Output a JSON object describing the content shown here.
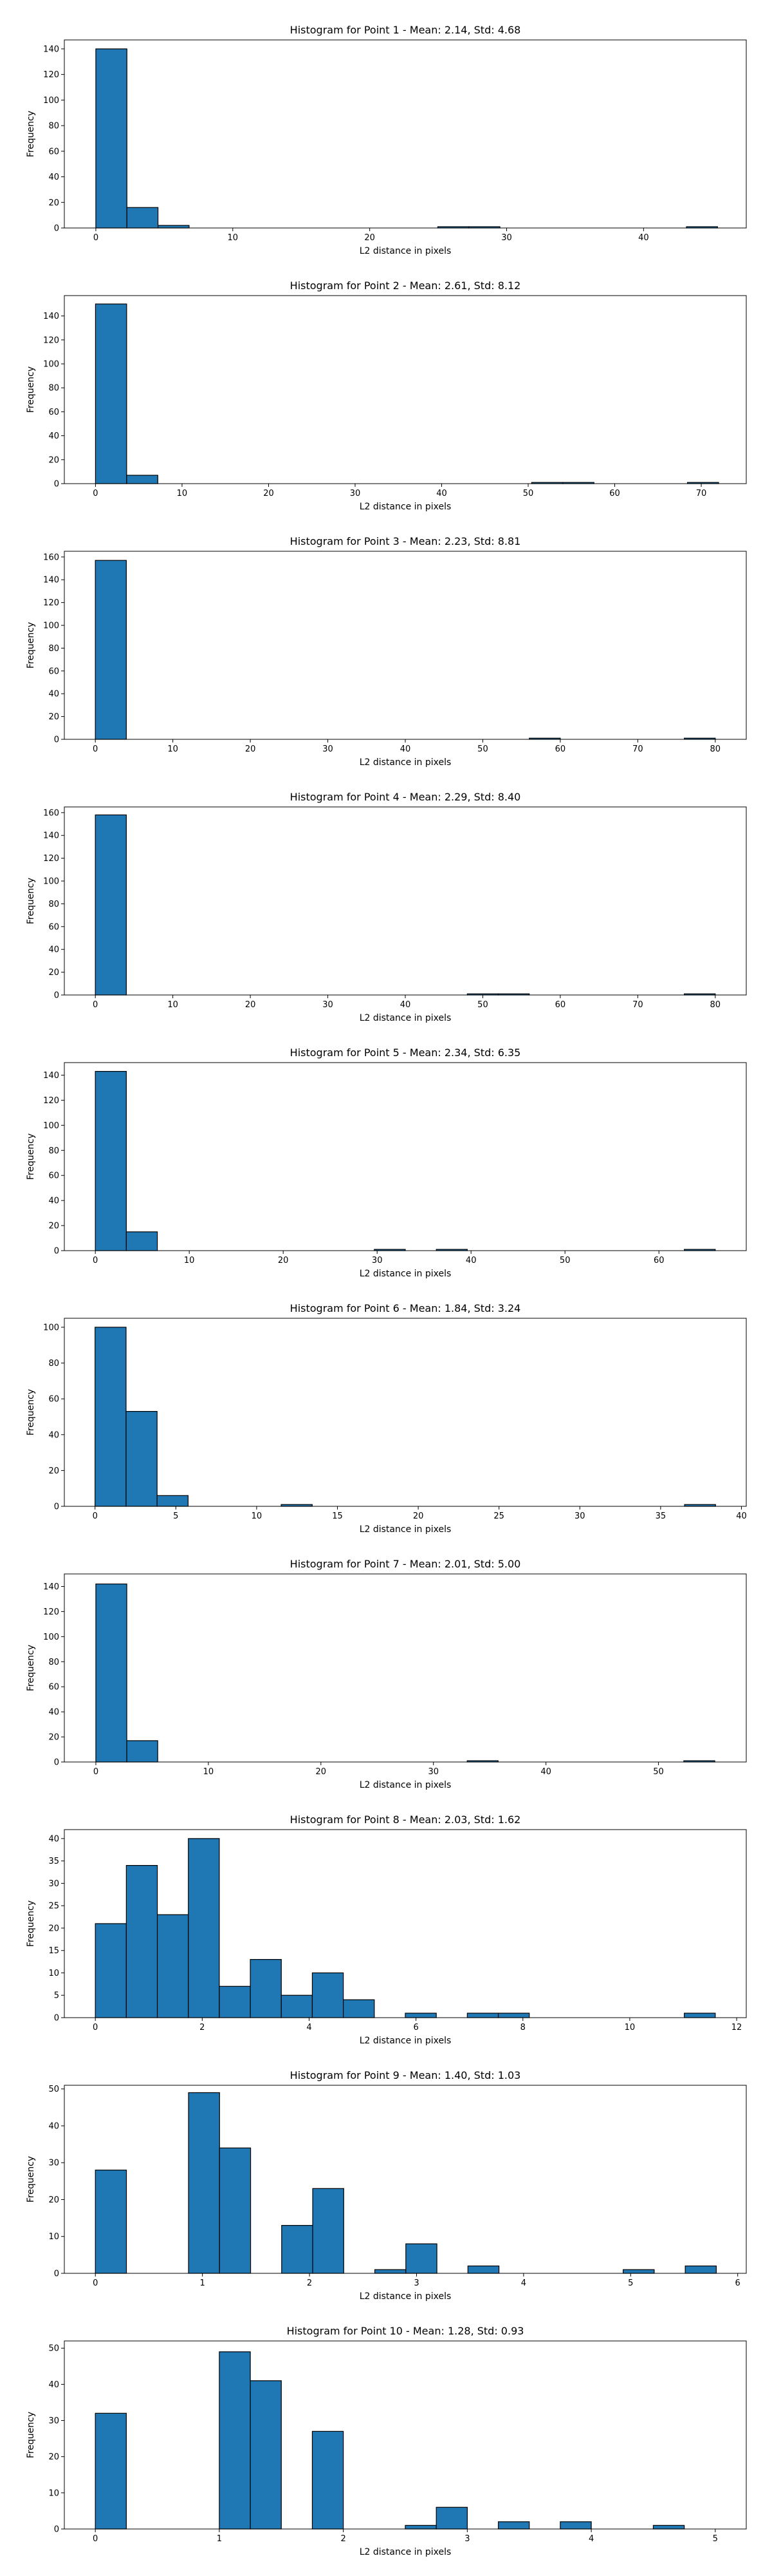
{
  "chart_data": [
    {
      "type": "bar",
      "title": "Histogram for Point 1 - Mean: 2.14, Std: 4.68",
      "xlabel": "L2 distance in pixels",
      "ylabel": "Frequency",
      "xlim": [
        -2.3,
        47.5
      ],
      "ylim": [
        0,
        147
      ],
      "xticks": [
        0,
        10,
        20,
        30,
        40
      ],
      "yticks": [
        0,
        20,
        40,
        60,
        80,
        100,
        120,
        140
      ],
      "bin_edges": [
        0.0,
        2.27,
        4.54,
        6.81,
        9.08,
        11.35,
        13.62,
        15.89,
        18.16,
        20.43,
        22.7,
        24.97,
        27.24,
        29.51,
        31.78,
        34.05,
        36.32,
        38.59,
        40.86,
        43.13,
        45.4
      ],
      "values": [
        140,
        16,
        2,
        0,
        0,
        0,
        0,
        0,
        0,
        0,
        0,
        1,
        1,
        0,
        0,
        0,
        0,
        0,
        0,
        1
      ]
    },
    {
      "type": "bar",
      "title": "Histogram for Point 2 - Mean: 2.61, Std: 8.12",
      "xlabel": "L2 distance in pixels",
      "ylabel": "Frequency",
      "xlim": [
        -3.6,
        75.2
      ],
      "ylim": [
        0,
        157
      ],
      "xticks": [
        0,
        10,
        20,
        30,
        40,
        50,
        60,
        70
      ],
      "yticks": [
        0,
        20,
        40,
        60,
        80,
        100,
        120,
        140
      ],
      "bin_edges": [
        0.0,
        3.6,
        7.2,
        10.8,
        14.4,
        18.0,
        21.6,
        25.2,
        28.8,
        32.4,
        36.0,
        39.6,
        43.2,
        46.8,
        50.4,
        54.0,
        57.6,
        61.2,
        64.8,
        68.4,
        72.0
      ],
      "values": [
        150,
        7,
        0,
        0,
        0,
        0,
        0,
        0,
        0,
        0,
        0,
        0,
        0,
        0,
        1,
        1,
        0,
        0,
        0,
        1
      ]
    },
    {
      "type": "bar",
      "title": "Histogram for Point 3 - Mean: 2.23, Std: 8.81",
      "xlabel": "L2 distance in pixels",
      "ylabel": "Frequency",
      "xlim": [
        -4.0,
        84.0
      ],
      "ylim": [
        0,
        165
      ],
      "xticks": [
        0,
        10,
        20,
        30,
        40,
        50,
        60,
        70,
        80
      ],
      "yticks": [
        0,
        20,
        40,
        60,
        80,
        100,
        120,
        140,
        160
      ],
      "bin_edges": [
        0.0,
        4.0,
        8.0,
        12.0,
        16.0,
        20.0,
        24.0,
        28.0,
        32.0,
        36.0,
        40.0,
        44.0,
        48.0,
        52.0,
        56.0,
        60.0,
        64.0,
        68.0,
        72.0,
        76.0,
        80.0
      ],
      "values": [
        157,
        0,
        0,
        0,
        0,
        0,
        0,
        0,
        0,
        0,
        0,
        0,
        0,
        0,
        1,
        0,
        0,
        0,
        0,
        1
      ]
    },
    {
      "type": "bar",
      "title": "Histogram for Point 4 - Mean: 2.29, Std: 8.40",
      "xlabel": "L2 distance in pixels",
      "ylabel": "Frequency",
      "xlim": [
        -4.0,
        84.0
      ],
      "ylim": [
        0,
        165
      ],
      "xticks": [
        0,
        10,
        20,
        30,
        40,
        50,
        60,
        70,
        80
      ],
      "yticks": [
        0,
        20,
        40,
        60,
        80,
        100,
        120,
        140,
        160
      ],
      "bin_edges": [
        0.0,
        4.0,
        8.0,
        12.0,
        16.0,
        20.0,
        24.0,
        28.0,
        32.0,
        36.0,
        40.0,
        44.0,
        48.0,
        52.0,
        56.0,
        60.0,
        64.0,
        68.0,
        72.0,
        76.0,
        80.0
      ],
      "values": [
        158,
        0,
        0,
        0,
        0,
        0,
        0,
        0,
        0,
        0,
        0,
        0,
        1,
        1,
        0,
        0,
        0,
        0,
        0,
        1
      ]
    },
    {
      "type": "bar",
      "title": "Histogram for Point 5 - Mean: 2.34, Std: 6.35",
      "xlabel": "L2 distance in pixels",
      "ylabel": "Frequency",
      "xlim": [
        -3.3,
        69.3
      ],
      "ylim": [
        0,
        150
      ],
      "xticks": [
        0,
        10,
        20,
        30,
        40,
        50,
        60
      ],
      "yticks": [
        0,
        20,
        40,
        60,
        80,
        100,
        120,
        140
      ],
      "bin_edges": [
        0.0,
        3.3,
        6.6,
        9.9,
        13.2,
        16.5,
        19.8,
        23.1,
        26.4,
        29.7,
        33.0,
        36.3,
        39.6,
        42.9,
        46.2,
        49.5,
        52.8,
        56.1,
        59.4,
        62.7,
        66.0
      ],
      "values": [
        143,
        15,
        0,
        0,
        0,
        0,
        0,
        0,
        0,
        1,
        0,
        1,
        0,
        0,
        0,
        0,
        0,
        0,
        0,
        1
      ]
    },
    {
      "type": "bar",
      "title": "Histogram for Point 6 - Mean: 1.84, Std: 3.24",
      "xlabel": "L2 distance in pixels",
      "ylabel": "Frequency",
      "xlim": [
        -1.9,
        40.3
      ],
      "ylim": [
        0,
        105
      ],
      "xticks": [
        0,
        5,
        10,
        15,
        20,
        25,
        30,
        35,
        40
      ],
      "yticks": [
        0,
        20,
        40,
        60,
        80,
        100
      ],
      "bin_edges": [
        0.0,
        1.92,
        3.84,
        5.76,
        7.68,
        9.6,
        11.52,
        13.44,
        15.36,
        17.28,
        19.2,
        21.12,
        23.04,
        24.96,
        26.88,
        28.8,
        30.72,
        32.64,
        34.56,
        36.48,
        38.4
      ],
      "values": [
        100,
        53,
        6,
        0,
        0,
        0,
        1,
        0,
        0,
        0,
        0,
        0,
        0,
        0,
        0,
        0,
        0,
        0,
        0,
        1
      ]
    },
    {
      "type": "bar",
      "title": "Histogram for Point 7 - Mean: 2.01, Std: 5.00",
      "xlabel": "L2 distance in pixels",
      "ylabel": "Frequency",
      "xlim": [
        -2.8,
        57.8
      ],
      "ylim": [
        0,
        150
      ],
      "xticks": [
        0,
        10,
        20,
        30,
        40,
        50
      ],
      "yticks": [
        0,
        20,
        40,
        60,
        80,
        100,
        120,
        140
      ],
      "bin_edges": [
        0.0,
        2.75,
        5.5,
        8.25,
        11.0,
        13.75,
        16.5,
        19.25,
        22.0,
        24.75,
        27.5,
        30.25,
        33.0,
        35.75,
        38.5,
        41.25,
        44.0,
        46.75,
        49.5,
        52.25,
        55.0
      ],
      "values": [
        142,
        17,
        0,
        0,
        0,
        0,
        0,
        0,
        0,
        0,
        0,
        0,
        1,
        0,
        0,
        0,
        0,
        0,
        0,
        1
      ]
    },
    {
      "type": "bar",
      "title": "Histogram for Point 8 - Mean: 2.03, Std: 1.62",
      "xlabel": "L2 distance in pixels",
      "ylabel": "Frequency",
      "xlim": [
        -0.58,
        12.18
      ],
      "ylim": [
        0,
        42
      ],
      "xticks": [
        0,
        2,
        4,
        6,
        8,
        10,
        12
      ],
      "yticks": [
        0,
        5,
        10,
        15,
        20,
        25,
        30,
        35,
        40
      ],
      "bin_edges": [
        0.0,
        0.58,
        1.16,
        1.74,
        2.32,
        2.9,
        3.48,
        4.06,
        4.64,
        5.22,
        5.8,
        6.38,
        6.96,
        7.54,
        8.12,
        8.7,
        9.28,
        9.86,
        10.44,
        11.02,
        11.6
      ],
      "values": [
        21,
        34,
        23,
        40,
        7,
        13,
        5,
        10,
        4,
        0,
        1,
        0,
        1,
        1,
        0,
        0,
        0,
        0,
        0,
        1
      ]
    },
    {
      "type": "bar",
      "title": "Histogram for Point 9 - Mean: 1.40, Std: 1.03",
      "xlabel": "L2 distance in pixels",
      "ylabel": "Frequency",
      "xlim": [
        -0.29,
        6.08
      ],
      "ylim": [
        0,
        51
      ],
      "xticks": [
        0,
        1,
        2,
        3,
        4,
        5,
        6
      ],
      "yticks": [
        0,
        10,
        20,
        30,
        40,
        50
      ],
      "bin_edges": [
        0.0,
        0.29,
        0.58,
        0.87,
        1.16,
        1.45,
        1.74,
        2.03,
        2.32,
        2.61,
        2.9,
        3.19,
        3.48,
        3.77,
        4.06,
        4.35,
        4.64,
        4.93,
        5.22,
        5.51,
        5.8
      ],
      "values": [
        28,
        0,
        0,
        49,
        34,
        0,
        13,
        23,
        0,
        1,
        8,
        0,
        2,
        0,
        0,
        0,
        0,
        1,
        0,
        2
      ]
    },
    {
      "type": "bar",
      "title": "Histogram for Point 10 - Mean: 1.28, Std: 0.93",
      "xlabel": "L2 distance in pixels",
      "ylabel": "Frequency",
      "xlim": [
        -0.25,
        5.25
      ],
      "ylim": [
        0,
        52
      ],
      "xticks": [
        0,
        1,
        2,
        3,
        4,
        5
      ],
      "yticks": [
        0,
        10,
        20,
        30,
        40,
        50
      ],
      "bin_edges": [
        0.0,
        0.25,
        0.5,
        0.75,
        1.0,
        1.25,
        1.5,
        1.75,
        2.0,
        2.25,
        2.5,
        2.75,
        3.0,
        3.25,
        3.5,
        3.75,
        4.0,
        4.25,
        4.5,
        4.75,
        5.0
      ],
      "values": [
        32,
        0,
        0,
        0,
        49,
        41,
        0,
        27,
        0,
        0,
        1,
        6,
        0,
        2,
        0,
        2,
        0,
        0,
        1,
        0
      ]
    }
  ]
}
